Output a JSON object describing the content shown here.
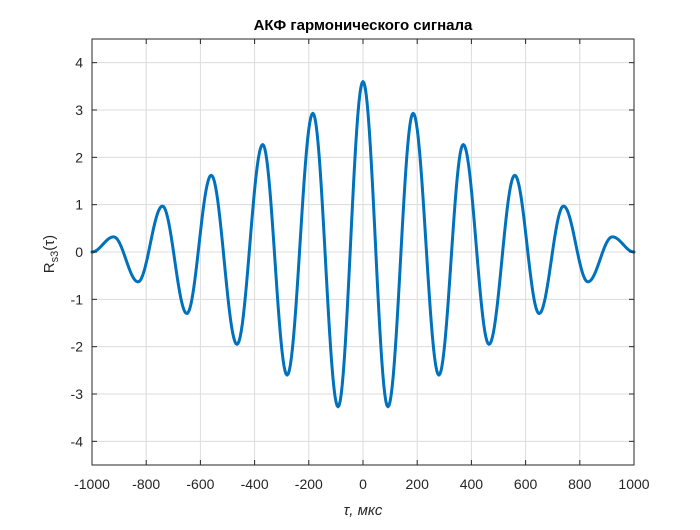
{
  "chart_data": {
    "type": "line",
    "title": "АКФ гармонического сигнала",
    "xlabel": "τ, мкс",
    "ylabel": "R_s3(τ)",
    "ylabel_main": "R",
    "ylabel_sub": "s3",
    "ylabel_arg": "(τ)",
    "xlim": [
      -1000,
      1000
    ],
    "ylim": [
      -4.5,
      4.5
    ],
    "xticks": [
      -1000,
      -800,
      -600,
      -400,
      -200,
      0,
      200,
      400,
      600,
      800,
      1000
    ],
    "yticks": [
      -4,
      -3,
      -2,
      -1,
      0,
      1,
      2,
      3,
      4
    ],
    "grid": true,
    "line_color": "#0072BD",
    "series": [
      {
        "x": [
          -1000,
          -920,
          -830,
          -740,
          -650,
          -560,
          -465,
          -370,
          -280,
          -185,
          -92,
          0,
          92,
          185,
          280,
          370,
          465,
          560,
          650,
          740,
          830,
          920,
          1000
        ],
        "values": [
          0,
          0.32,
          -0.63,
          0.97,
          -1.3,
          1.62,
          -1.95,
          2.27,
          -2.6,
          2.93,
          -3.27,
          3.6,
          -3.27,
          2.93,
          -2.6,
          2.27,
          -1.95,
          1.62,
          -1.3,
          0.97,
          -0.63,
          0.32,
          0
        ]
      }
    ]
  }
}
